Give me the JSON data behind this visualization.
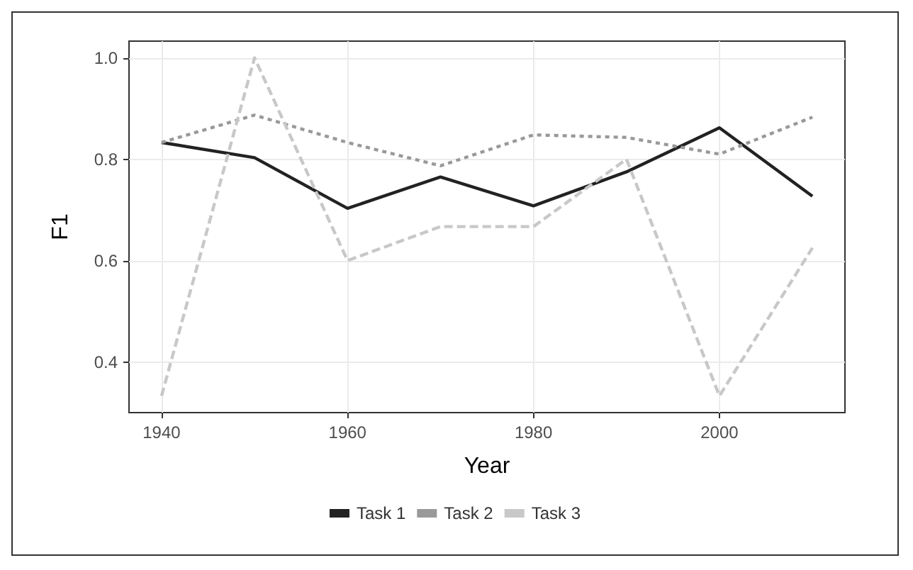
{
  "chart_data": {
    "type": "line",
    "xlabel": "Year",
    "ylabel": "F1",
    "x": [
      1940,
      1950,
      1960,
      1970,
      1980,
      1990,
      2000,
      2010
    ],
    "series": [
      {
        "name": "Task 1",
        "color": "#222222",
        "line_style": "solid",
        "values": [
          0.833,
          0.803,
          0.703,
          0.765,
          0.708,
          0.775,
          0.862,
          0.727
        ]
      },
      {
        "name": "Task 2",
        "color": "#999999",
        "line_style": "dotted",
        "values": [
          0.833,
          0.887,
          0.833,
          0.787,
          0.848,
          0.843,
          0.81,
          0.883
        ]
      },
      {
        "name": "Task 3",
        "color": "#c8c8c8",
        "line_style": "dashed",
        "values": [
          0.333,
          1.0,
          0.6,
          0.667,
          0.667,
          0.8,
          0.333,
          0.625
        ]
      }
    ],
    "xlim": [
      1936.5,
      2013.5
    ],
    "xticks": [
      1940,
      1960,
      1980,
      2000
    ],
    "ylim": [
      0.3,
      1.033
    ],
    "yticks": [
      0.4,
      0.6,
      0.8,
      {
        "value": 1.0,
        "label": "1.0"
      }
    ],
    "grid": true,
    "legend": "bottom",
    "marker": "none"
  }
}
